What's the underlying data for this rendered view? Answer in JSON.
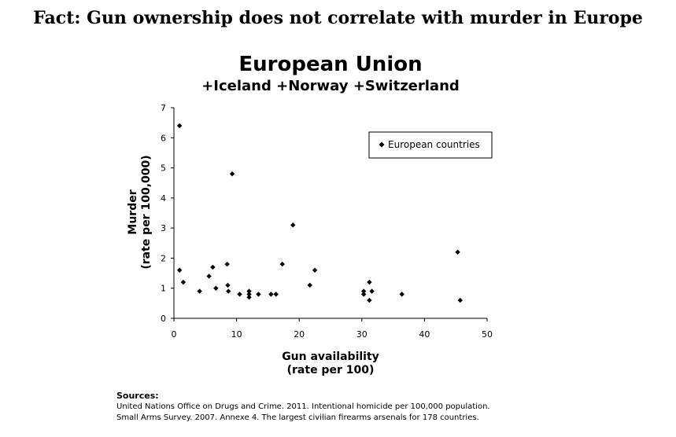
{
  "headline": "Fact: Gun ownership does not correlate with murder in Europe",
  "sources": {
    "heading": "Sources:",
    "lines": [
      "United Nations Office on Drugs and Crime. 2011. Intentional homicide per 100,000 population.",
      "Small Arms Survey. 2007. Annexe 4. The largest civilian firearms arsenals for 178 countries."
    ]
  },
  "chart_data": {
    "type": "scatter",
    "title": "European Union",
    "subtitle": "+Iceland +Norway +Switzerland",
    "xlabel": [
      "Gun availability",
      "(rate per 100)"
    ],
    "ylabel": [
      "Murder",
      "(rate per 100,000)"
    ],
    "xlim": [
      0,
      50
    ],
    "ylim": [
      0,
      7
    ],
    "xticks": [
      0,
      10,
      20,
      30,
      40,
      50
    ],
    "yticks": [
      0,
      1,
      2,
      3,
      4,
      5,
      6,
      7
    ],
    "grid": false,
    "legend_position": "top-right",
    "marker_color": "#000000",
    "series": [
      {
        "name": "European countries",
        "points": [
          [
            0.9,
            6.4
          ],
          [
            0.9,
            1.6
          ],
          [
            1.5,
            1.2
          ],
          [
            4.1,
            0.9
          ],
          [
            5.6,
            1.4
          ],
          [
            6.2,
            1.7
          ],
          [
            6.7,
            1.0
          ],
          [
            8.5,
            1.8
          ],
          [
            8.6,
            1.1
          ],
          [
            8.7,
            0.9
          ],
          [
            9.3,
            4.8
          ],
          [
            10.5,
            0.8
          ],
          [
            12.0,
            0.9
          ],
          [
            12.0,
            0.8
          ],
          [
            12.0,
            0.7
          ],
          [
            13.5,
            0.8
          ],
          [
            15.5,
            0.8
          ],
          [
            16.3,
            0.8
          ],
          [
            17.3,
            1.8
          ],
          [
            19.0,
            3.1
          ],
          [
            21.7,
            1.1
          ],
          [
            22.5,
            1.6
          ],
          [
            30.3,
            0.9
          ],
          [
            30.3,
            0.8
          ],
          [
            31.2,
            1.2
          ],
          [
            31.2,
            0.6
          ],
          [
            31.6,
            0.9
          ],
          [
            36.4,
            0.8
          ],
          [
            45.3,
            2.2
          ],
          [
            45.7,
            0.6
          ]
        ]
      }
    ]
  }
}
